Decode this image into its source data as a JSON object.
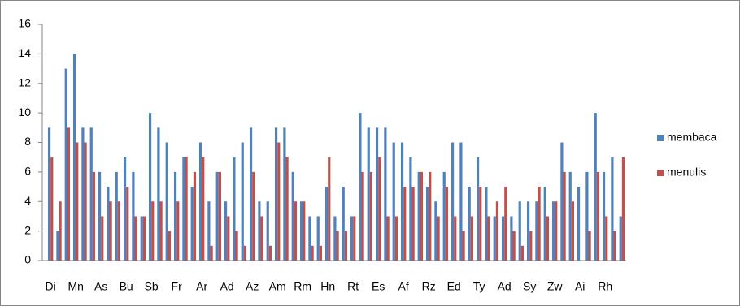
{
  "chart_data": {
    "type": "bar",
    "categories": [
      "Di",
      null,
      null,
      "Mn",
      null,
      null,
      "As",
      null,
      null,
      "Bu",
      null,
      null,
      "Sb",
      null,
      null,
      "Fr",
      null,
      null,
      "Ar",
      null,
      null,
      "Ad",
      null,
      null,
      "Az",
      null,
      null,
      "Am",
      null,
      null,
      "Rm",
      null,
      null,
      "Hn",
      null,
      null,
      "Rt",
      null,
      null,
      "Es",
      null,
      null,
      "Af",
      null,
      null,
      "Rz",
      null,
      null,
      "Ed",
      null,
      null,
      "Ty",
      null,
      null,
      "Ad",
      null,
      null,
      "Sy",
      null,
      null,
      "Zw",
      null,
      null,
      "Ai",
      null,
      null,
      "Rh",
      null,
      null
    ],
    "series": [
      {
        "name": "membaca",
        "color": "#4f81bd",
        "values": [
          9,
          2,
          13,
          14,
          9,
          9,
          6,
          5,
          6,
          7,
          6,
          3,
          10,
          9,
          8,
          6,
          7,
          5,
          8,
          4,
          6,
          4,
          7,
          8,
          9,
          4,
          4,
          9,
          9,
          6,
          4,
          3,
          3,
          5,
          3,
          5,
          3,
          10,
          9,
          9,
          9,
          8,
          8,
          7,
          6,
          5,
          4,
          6,
          8,
          8,
          5,
          7,
          5,
          3,
          3,
          3,
          4,
          4,
          4,
          5,
          4,
          8,
          6,
          5,
          6,
          10,
          6,
          7,
          3
        ]
      },
      {
        "name": "menulis",
        "color": "#c0504d",
        "values": [
          7,
          4,
          9,
          8,
          8,
          6,
          3,
          4,
          4,
          5,
          3,
          3,
          4,
          4,
          2,
          4,
          7,
          6,
          7,
          1,
          6,
          3,
          2,
          1,
          6,
          3,
          1,
          8,
          7,
          4,
          4,
          1,
          1,
          7,
          2,
          2,
          3,
          6,
          6,
          7,
          3,
          3,
          5,
          5,
          6,
          6,
          3,
          5,
          3,
          2,
          3,
          5,
          3,
          4,
          5,
          2,
          1,
          2,
          5,
          3,
          4,
          6,
          4,
          0,
          2,
          6,
          3,
          2,
          7
        ]
      }
    ],
    "ylim": [
      0,
      16
    ],
    "yticks": [
      0,
      2,
      4,
      6,
      8,
      10,
      12,
      14,
      16
    ],
    "legend": "right"
  }
}
